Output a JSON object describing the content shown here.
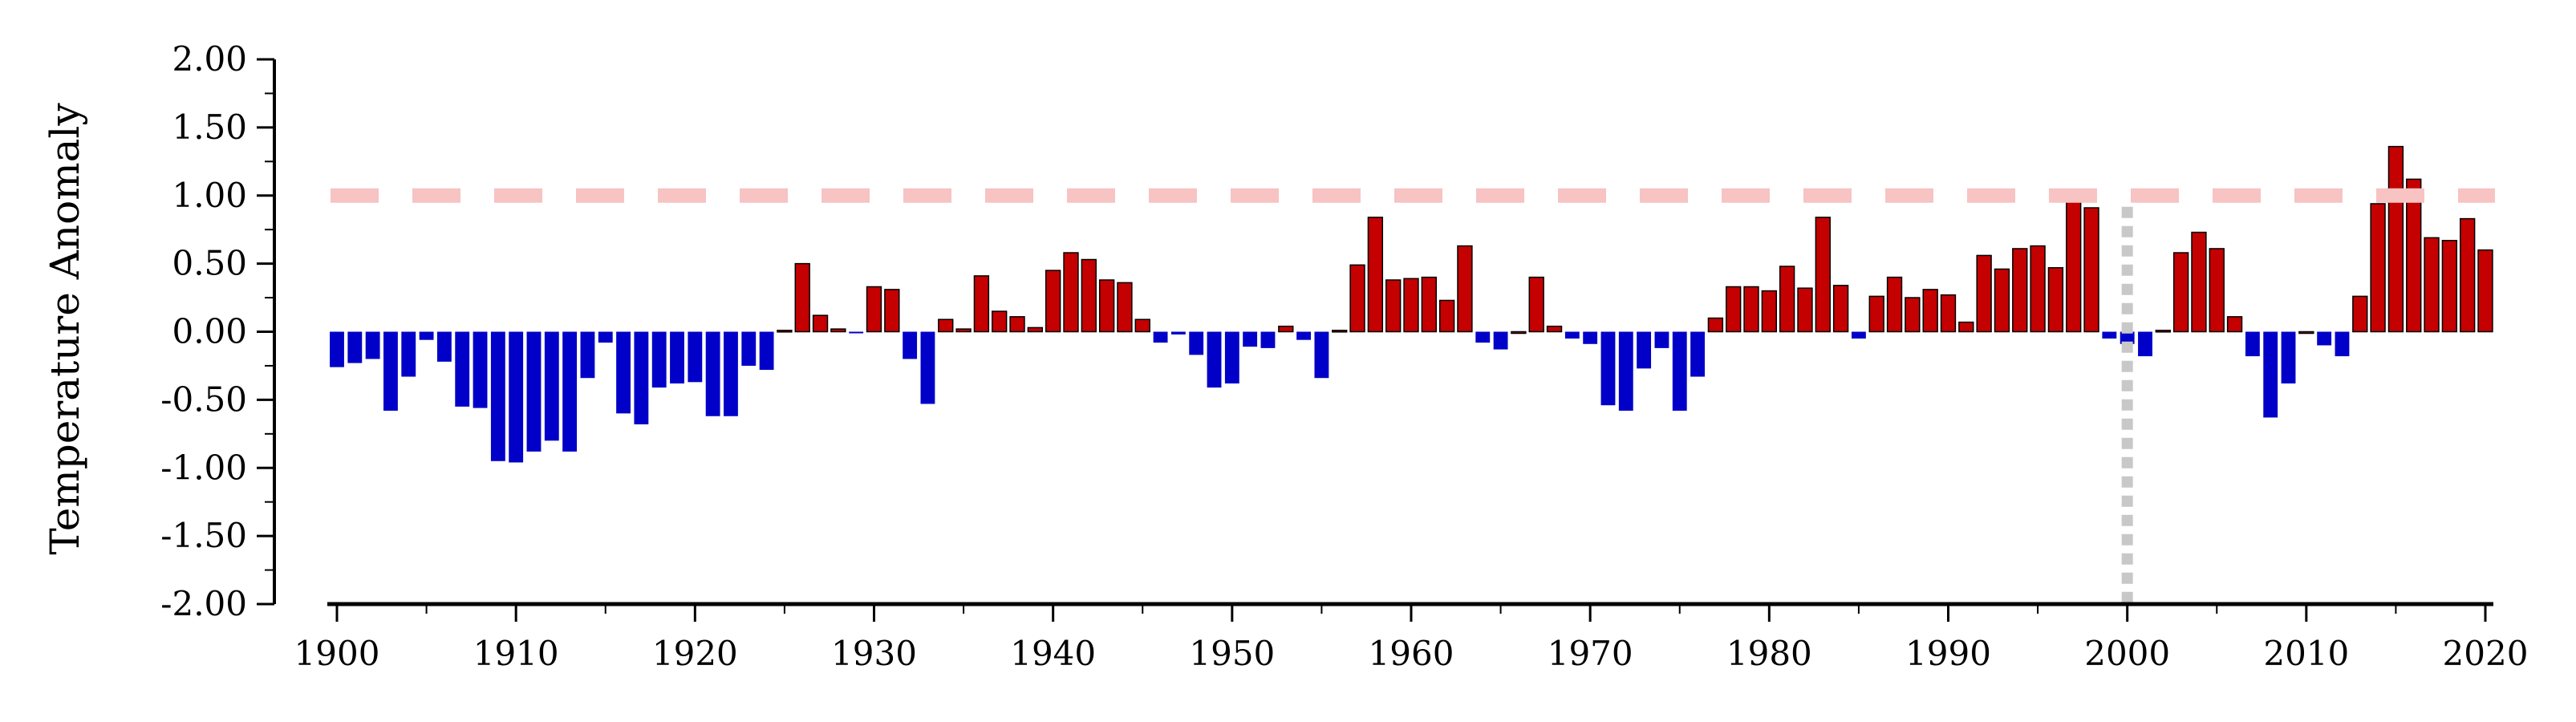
{
  "chart_data": {
    "type": "bar",
    "title": "",
    "xlabel": "",
    "ylabel": "Temperature Anomaly",
    "xlim": [
      1900,
      2020
    ],
    "ylim": [
      -2.0,
      2.0
    ],
    "yticks": [
      "2.00",
      "1.50",
      "1.00",
      "0.50",
      "0.00",
      "-0.50",
      "-1.00",
      "-1.50",
      "-2.00"
    ],
    "xticks": [
      "1900",
      "1910",
      "1920",
      "1930",
      "1940",
      "1950",
      "1960",
      "1970",
      "1980",
      "1990",
      "2000",
      "2010",
      "2020"
    ],
    "reference_line": {
      "y": 1.0,
      "style": "dashed",
      "color": "#f7c3c3"
    },
    "vertical_marker": {
      "x": 2000,
      "style": "dotted",
      "color": "#c8c8c8"
    },
    "colors": {
      "positive": "#c40000",
      "negative": "#0000c8"
    },
    "grid": false,
    "years": [
      1900,
      1901,
      1902,
      1903,
      1904,
      1905,
      1906,
      1907,
      1908,
      1909,
      1910,
      1911,
      1912,
      1913,
      1914,
      1915,
      1916,
      1917,
      1918,
      1919,
      1920,
      1921,
      1922,
      1923,
      1924,
      1925,
      1926,
      1927,
      1928,
      1929,
      1930,
      1931,
      1932,
      1933,
      1934,
      1935,
      1936,
      1937,
      1938,
      1939,
      1940,
      1941,
      1942,
      1943,
      1944,
      1945,
      1946,
      1947,
      1948,
      1949,
      1950,
      1951,
      1952,
      1953,
      1954,
      1955,
      1956,
      1957,
      1958,
      1959,
      1960,
      1961,
      1962,
      1963,
      1964,
      1965,
      1966,
      1967,
      1968,
      1969,
      1970,
      1971,
      1972,
      1973,
      1974,
      1975,
      1976,
      1977,
      1978,
      1979,
      1980,
      1981,
      1982,
      1983,
      1984,
      1985,
      1986,
      1987,
      1988,
      1989,
      1990,
      1991,
      1992,
      1993,
      1994,
      1995,
      1996,
      1997,
      1998,
      1999,
      2000,
      2001,
      2002,
      2003,
      2004,
      2005,
      2006,
      2007,
      2008,
      2009,
      2010,
      2011,
      2012,
      2013,
      2014,
      2015,
      2016,
      2017,
      2018,
      2019,
      2020
    ],
    "values": [
      -0.26,
      -0.23,
      -0.2,
      -0.58,
      -0.33,
      -0.06,
      -0.22,
      -0.55,
      -0.56,
      -0.95,
      -0.96,
      -0.88,
      -0.8,
      -0.88,
      -0.34,
      -0.08,
      -0.6,
      -0.68,
      -0.41,
      -0.38,
      -0.37,
      -0.62,
      -0.62,
      -0.25,
      -0.28,
      0.01,
      0.5,
      0.12,
      0.02,
      -0.01,
      0.33,
      0.31,
      -0.2,
      -0.53,
      0.09,
      0.02,
      0.41,
      0.15,
      0.11,
      0.03,
      0.45,
      0.58,
      0.53,
      0.38,
      0.36,
      0.09,
      -0.08,
      -0.02,
      -0.17,
      -0.41,
      -0.38,
      -0.11,
      -0.12,
      0.04,
      -0.06,
      -0.34,
      0.01,
      0.49,
      0.84,
      0.38,
      0.39,
      0.4,
      0.23,
      0.63,
      -0.08,
      -0.13,
      0.0,
      0.4,
      0.04,
      -0.05,
      -0.09,
      -0.54,
      -0.58,
      -0.27,
      -0.12,
      -0.58,
      -0.33,
      0.1,
      0.33,
      0.33,
      0.3,
      0.48,
      0.32,
      0.84,
      0.34,
      -0.05,
      0.26,
      0.4,
      0.25,
      0.31,
      0.27,
      0.07,
      0.56,
      0.46,
      0.61,
      0.63,
      0.47,
      0.98,
      0.91,
      -0.05,
      -0.09,
      -0.18,
      0.01,
      0.58,
      0.73,
      0.61,
      0.11,
      -0.18,
      -0.63,
      -0.38,
      0.0,
      -0.1,
      -0.18,
      0.26,
      0.94,
      1.36,
      1.12,
      0.69,
      0.67,
      0.83,
      0.6
    ]
  }
}
